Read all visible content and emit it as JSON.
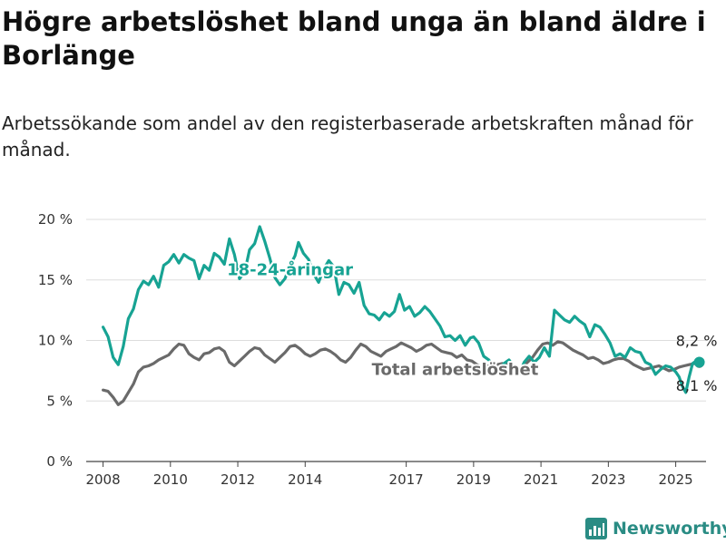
{
  "title": "Högre arbetslöshet bland unga än bland äldre i Borlänge",
  "subtitle": "Arbetssökande som andel av den registerbaserade arbetskraften månad för månad.",
  "brand": {
    "name": "Newsworthy",
    "icon": "newsworthy-logo-icon",
    "color": "#2a8c84"
  },
  "chart_data": {
    "type": "line",
    "title": "",
    "xlabel": "",
    "ylabel": "",
    "ylim": [
      0,
      20
    ],
    "xlim": [
      2007.5,
      2025.9
    ],
    "grid": "horizontal",
    "legend": "inline labels",
    "y_ticks": [
      0,
      5,
      10,
      15,
      20
    ],
    "y_tick_labels": [
      "0 %",
      "5 %",
      "10 %",
      "15 %",
      "20 %"
    ],
    "x_ticks": [
      2008,
      2010,
      2012,
      2014,
      2017,
      2019,
      2021,
      2023,
      2025
    ],
    "x_tick_labels": [
      "2008",
      "2010",
      "2012",
      "2014",
      "2017",
      "2019",
      "2021",
      "2023",
      "2025"
    ],
    "series": [
      {
        "name": "18-24-åringar",
        "color": "#17a393",
        "end_label": "8,2 %",
        "points": [
          [
            2008.0,
            11.1
          ],
          [
            2008.15,
            10.3
          ],
          [
            2008.3,
            8.6
          ],
          [
            2008.45,
            8.0
          ],
          [
            2008.6,
            9.5
          ],
          [
            2008.75,
            11.8
          ],
          [
            2008.9,
            12.6
          ],
          [
            2009.05,
            14.2
          ],
          [
            2009.2,
            14.9
          ],
          [
            2009.35,
            14.6
          ],
          [
            2009.5,
            15.3
          ],
          [
            2009.65,
            14.4
          ],
          [
            2009.8,
            16.2
          ],
          [
            2009.95,
            16.5
          ],
          [
            2010.1,
            17.1
          ],
          [
            2010.25,
            16.4
          ],
          [
            2010.4,
            17.1
          ],
          [
            2010.55,
            16.8
          ],
          [
            2010.7,
            16.6
          ],
          [
            2010.85,
            15.1
          ],
          [
            2011.0,
            16.2
          ],
          [
            2011.15,
            15.8
          ],
          [
            2011.3,
            17.2
          ],
          [
            2011.45,
            16.9
          ],
          [
            2011.6,
            16.3
          ],
          [
            2011.75,
            18.4
          ],
          [
            2011.9,
            17.1
          ],
          [
            2012.05,
            15.1
          ],
          [
            2012.2,
            15.6
          ],
          [
            2012.35,
            17.5
          ],
          [
            2012.5,
            18.0
          ],
          [
            2012.65,
            19.4
          ],
          [
            2012.8,
            18.2
          ],
          [
            2012.95,
            16.8
          ],
          [
            2013.1,
            15.2
          ],
          [
            2013.25,
            14.6
          ],
          [
            2013.4,
            15.1
          ],
          [
            2013.55,
            16.2
          ],
          [
            2013.7,
            17.0
          ],
          [
            2013.8,
            18.1
          ],
          [
            2013.95,
            17.2
          ],
          [
            2014.1,
            16.7
          ],
          [
            2014.25,
            15.5
          ],
          [
            2014.4,
            14.8
          ],
          [
            2014.55,
            15.9
          ],
          [
            2014.7,
            16.6
          ],
          [
            2014.85,
            16.1
          ],
          [
            2015.0,
            13.8
          ],
          [
            2015.15,
            14.8
          ],
          [
            2015.3,
            14.6
          ],
          [
            2015.45,
            13.9
          ],
          [
            2015.6,
            14.8
          ],
          [
            2015.75,
            12.9
          ],
          [
            2015.9,
            12.2
          ],
          [
            2016.05,
            12.1
          ],
          [
            2016.2,
            11.7
          ],
          [
            2016.35,
            12.3
          ],
          [
            2016.5,
            12.0
          ],
          [
            2016.65,
            12.4
          ],
          [
            2016.8,
            13.8
          ],
          [
            2016.95,
            12.5
          ],
          [
            2017.1,
            12.8
          ],
          [
            2017.25,
            12.0
          ],
          [
            2017.4,
            12.3
          ],
          [
            2017.55,
            12.8
          ],
          [
            2017.7,
            12.4
          ],
          [
            2017.85,
            11.8
          ],
          [
            2018.0,
            11.2
          ],
          [
            2018.15,
            10.3
          ],
          [
            2018.3,
            10.4
          ],
          [
            2018.45,
            10.0
          ],
          [
            2018.6,
            10.4
          ],
          [
            2018.75,
            9.6
          ],
          [
            2018.9,
            10.2
          ],
          [
            2019.0,
            10.3
          ],
          [
            2019.15,
            9.8
          ],
          [
            2019.3,
            8.7
          ],
          [
            2019.45,
            8.4
          ],
          [
            2019.6,
            7.8
          ],
          [
            2019.75,
            7.6
          ],
          [
            2019.9,
            8.1
          ],
          [
            2020.05,
            8.4
          ],
          [
            2020.2,
            7.8
          ],
          [
            2020.35,
            7.2
          ],
          [
            2020.5,
            8.2
          ],
          [
            2020.65,
            8.7
          ],
          [
            2020.8,
            8.2
          ],
          [
            2020.95,
            8.6
          ],
          [
            2021.1,
            9.4
          ],
          [
            2021.25,
            8.7
          ],
          [
            2021.4,
            12.5
          ],
          [
            2021.55,
            12.1
          ],
          [
            2021.7,
            11.7
          ],
          [
            2021.85,
            11.5
          ],
          [
            2022.0,
            12.0
          ],
          [
            2022.15,
            11.6
          ],
          [
            2022.3,
            11.3
          ],
          [
            2022.45,
            10.3
          ],
          [
            2022.6,
            11.3
          ],
          [
            2022.75,
            11.1
          ],
          [
            2022.9,
            10.5
          ],
          [
            2023.05,
            9.8
          ],
          [
            2023.2,
            8.7
          ],
          [
            2023.35,
            8.9
          ],
          [
            2023.5,
            8.6
          ],
          [
            2023.65,
            9.4
          ],
          [
            2023.8,
            9.1
          ],
          [
            2023.95,
            9.0
          ],
          [
            2024.1,
            8.2
          ],
          [
            2024.25,
            8.0
          ],
          [
            2024.4,
            7.2
          ],
          [
            2024.55,
            7.6
          ],
          [
            2024.7,
            7.9
          ],
          [
            2024.85,
            7.8
          ],
          [
            2025.0,
            7.4
          ],
          [
            2025.1,
            7.0
          ],
          [
            2025.2,
            6.2
          ],
          [
            2025.3,
            5.7
          ],
          [
            2025.4,
            7.0
          ],
          [
            2025.5,
            8.1
          ],
          [
            2025.6,
            8.3
          ],
          [
            2025.7,
            8.2
          ]
        ]
      },
      {
        "name": "Total arbetslöshet",
        "color": "#6a6a6a",
        "end_label": "8,1 %",
        "points": [
          [
            2008.0,
            5.9
          ],
          [
            2008.15,
            5.8
          ],
          [
            2008.3,
            5.3
          ],
          [
            2008.45,
            4.7
          ],
          [
            2008.6,
            5.0
          ],
          [
            2008.75,
            5.7
          ],
          [
            2008.9,
            6.4
          ],
          [
            2009.05,
            7.4
          ],
          [
            2009.2,
            7.8
          ],
          [
            2009.35,
            7.9
          ],
          [
            2009.5,
            8.1
          ],
          [
            2009.65,
            8.4
          ],
          [
            2009.8,
            8.6
          ],
          [
            2009.95,
            8.8
          ],
          [
            2010.1,
            9.3
          ],
          [
            2010.25,
            9.7
          ],
          [
            2010.4,
            9.6
          ],
          [
            2010.55,
            8.9
          ],
          [
            2010.7,
            8.6
          ],
          [
            2010.85,
            8.4
          ],
          [
            2011.0,
            8.9
          ],
          [
            2011.15,
            9.0
          ],
          [
            2011.3,
            9.3
          ],
          [
            2011.45,
            9.4
          ],
          [
            2011.6,
            9.1
          ],
          [
            2011.75,
            8.2
          ],
          [
            2011.9,
            7.9
          ],
          [
            2012.05,
            8.3
          ],
          [
            2012.2,
            8.7
          ],
          [
            2012.35,
            9.1
          ],
          [
            2012.5,
            9.4
          ],
          [
            2012.65,
            9.3
          ],
          [
            2012.8,
            8.8
          ],
          [
            2012.95,
            8.5
          ],
          [
            2013.1,
            8.2
          ],
          [
            2013.25,
            8.6
          ],
          [
            2013.4,
            9.0
          ],
          [
            2013.55,
            9.5
          ],
          [
            2013.7,
            9.6
          ],
          [
            2013.85,
            9.3
          ],
          [
            2014.0,
            8.9
          ],
          [
            2014.15,
            8.7
          ],
          [
            2014.3,
            8.9
          ],
          [
            2014.45,
            9.2
          ],
          [
            2014.6,
            9.3
          ],
          [
            2014.75,
            9.1
          ],
          [
            2014.9,
            8.8
          ],
          [
            2015.05,
            8.4
          ],
          [
            2015.2,
            8.2
          ],
          [
            2015.35,
            8.6
          ],
          [
            2015.5,
            9.2
          ],
          [
            2015.65,
            9.7
          ],
          [
            2015.8,
            9.5
          ],
          [
            2015.95,
            9.1
          ],
          [
            2016.1,
            8.9
          ],
          [
            2016.25,
            8.7
          ],
          [
            2016.4,
            9.1
          ],
          [
            2016.55,
            9.3
          ],
          [
            2016.7,
            9.5
          ],
          [
            2016.85,
            9.8
          ],
          [
            2017.0,
            9.6
          ],
          [
            2017.15,
            9.4
          ],
          [
            2017.3,
            9.1
          ],
          [
            2017.45,
            9.3
          ],
          [
            2017.6,
            9.6
          ],
          [
            2017.75,
            9.7
          ],
          [
            2017.9,
            9.4
          ],
          [
            2018.05,
            9.1
          ],
          [
            2018.2,
            9.0
          ],
          [
            2018.35,
            8.9
          ],
          [
            2018.5,
            8.6
          ],
          [
            2018.65,
            8.8
          ],
          [
            2018.8,
            8.4
          ],
          [
            2018.95,
            8.3
          ],
          [
            2019.1,
            8.0
          ],
          [
            2019.25,
            7.8
          ],
          [
            2019.4,
            7.9
          ],
          [
            2019.55,
            7.8
          ],
          [
            2019.7,
            8.0
          ],
          [
            2019.85,
            8.1
          ],
          [
            2020.0,
            8.0
          ],
          [
            2020.15,
            7.9
          ],
          [
            2020.3,
            7.6
          ],
          [
            2020.45,
            7.8
          ],
          [
            2020.6,
            8.2
          ],
          [
            2020.75,
            8.6
          ],
          [
            2020.9,
            9.2
          ],
          [
            2021.05,
            9.7
          ],
          [
            2021.2,
            9.8
          ],
          [
            2021.35,
            9.6
          ],
          [
            2021.5,
            9.9
          ],
          [
            2021.65,
            9.8
          ],
          [
            2021.8,
            9.5
          ],
          [
            2021.95,
            9.2
          ],
          [
            2022.1,
            9.0
          ],
          [
            2022.25,
            8.8
          ],
          [
            2022.4,
            8.5
          ],
          [
            2022.55,
            8.6
          ],
          [
            2022.7,
            8.4
          ],
          [
            2022.85,
            8.1
          ],
          [
            2023.0,
            8.2
          ],
          [
            2023.15,
            8.4
          ],
          [
            2023.3,
            8.5
          ],
          [
            2023.45,
            8.5
          ],
          [
            2023.6,
            8.3
          ],
          [
            2023.75,
            8.0
          ],
          [
            2023.9,
            7.8
          ],
          [
            2024.05,
            7.6
          ],
          [
            2024.2,
            7.7
          ],
          [
            2024.35,
            7.8
          ],
          [
            2024.5,
            7.9
          ],
          [
            2024.65,
            7.7
          ],
          [
            2024.8,
            7.5
          ],
          [
            2024.95,
            7.6
          ],
          [
            2025.1,
            7.8
          ],
          [
            2025.25,
            7.9
          ],
          [
            2025.4,
            8.0
          ],
          [
            2025.55,
            8.1
          ],
          [
            2025.7,
            8.1
          ]
        ]
      }
    ]
  }
}
